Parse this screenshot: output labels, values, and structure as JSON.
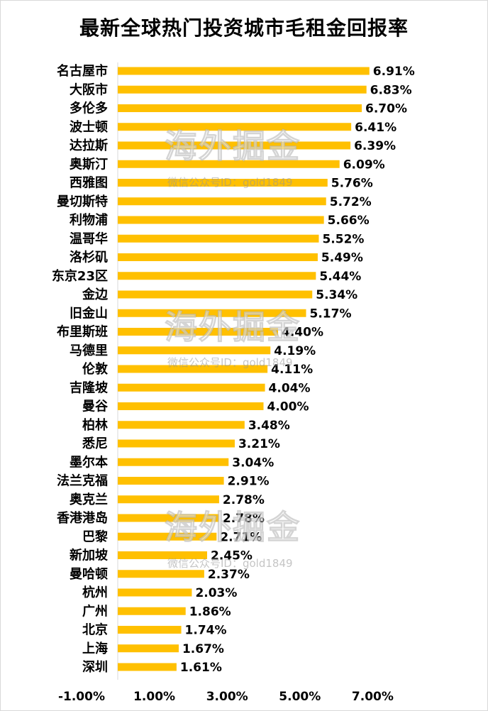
{
  "chart_data": {
    "type": "bar",
    "orientation": "horizontal",
    "title": "最新全球热门投资城市毛租金回报率",
    "categories": [
      "名古屋市",
      "大阪市",
      "多伦多",
      "波士顿",
      "达拉斯",
      "奥斯汀",
      "西雅图",
      "曼切斯特",
      "利物浦",
      "温哥华",
      "洛杉矶",
      "东京23区",
      "金边",
      "旧金山",
      "布里斯班",
      "马德里",
      "伦敦",
      "吉隆坡",
      "曼谷",
      "柏林",
      "悉尼",
      "墨尔本",
      "法兰克福",
      "奥克兰",
      "香港港岛",
      "巴黎",
      "新加坡",
      "曼哈顿",
      "杭州",
      "广州",
      "北京",
      "上海",
      "深圳"
    ],
    "values": [
      6.91,
      6.83,
      6.7,
      6.41,
      6.39,
      6.09,
      5.76,
      5.72,
      5.66,
      5.52,
      5.49,
      5.44,
      5.34,
      5.17,
      4.4,
      4.19,
      4.11,
      4.04,
      4.0,
      3.48,
      3.21,
      3.04,
      2.91,
      2.78,
      2.78,
      2.71,
      2.45,
      2.37,
      2.03,
      1.86,
      1.74,
      1.67,
      1.61
    ],
    "value_labels": [
      "6.91%",
      "6.83%",
      "6.70%",
      "6.41%",
      "6.39%",
      "6.09%",
      "5.76%",
      "5.72%",
      "5.66%",
      "5.52%",
      "5.49%",
      "5.44%",
      "5.34%",
      "5.17%",
      "4.40%",
      "4.19%",
      "4.11%",
      "4.04%",
      "4.00%",
      "3.48%",
      "3.21%",
      "3.04%",
      "2.91%",
      "2.78%",
      "2.78%",
      "2.71%",
      "2.45%",
      "2.37%",
      "2.03%",
      "1.86%",
      "1.74%",
      "1.67%",
      "1.61%"
    ],
    "xlim": [
      -1,
      7
    ],
    "tick_values": [
      -1,
      1,
      3,
      5,
      7
    ],
    "tick_labels": [
      "-1.00%",
      "1.00%",
      "3.00%",
      "5.00%",
      "7.00%"
    ],
    "bar_color": "#FFC000",
    "grid": false,
    "xlabel": "",
    "ylabel": ""
  },
  "watermark": {
    "text": "海外掘金",
    "subtext": "微信公众号ID：gold1849"
  }
}
